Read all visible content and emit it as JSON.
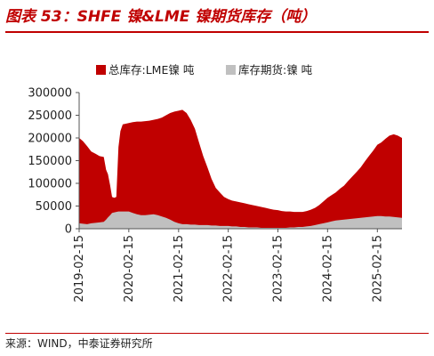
{
  "figure": {
    "title": "图表 53：SHFE 镍&LME 镍期货库存（吨）",
    "source": "来源：WIND，中泰证券研究所"
  },
  "colors": {
    "title": "#c00000",
    "total_series": "#c00000",
    "shfe_series": "#c0c0c0"
  },
  "chart_data": {
    "type": "area",
    "title": "",
    "xlabel": "",
    "ylabel": "",
    "ylim": [
      0,
      300000
    ],
    "y_ticks": [
      0,
      50000,
      100000,
      150000,
      200000,
      250000,
      300000
    ],
    "y_tick_labels": [
      "0",
      "50000",
      "100000",
      "150000",
      "200000",
      "250000",
      "300000"
    ],
    "x_ticks": [
      "2019-02-15",
      "2020-02-15",
      "2021-02-15",
      "2022-02-15",
      "2023-02-15",
      "2024-02-15",
      "2025-02-15"
    ],
    "x_range": [
      "2019-02-15",
      "2025-08-15"
    ],
    "grid": false,
    "legend_position": "top",
    "x": [
      "2019-02-15",
      "2019-03-15",
      "2019-04-15",
      "2019-05-15",
      "2019-06-15",
      "2019-07-15",
      "2019-08-15",
      "2019-09-01",
      "2019-09-15",
      "2019-10-01",
      "2019-10-15",
      "2019-11-01",
      "2019-11-15",
      "2019-12-01",
      "2019-12-15",
      "2020-01-01",
      "2020-02-15",
      "2020-03-15",
      "2020-04-15",
      "2020-05-15",
      "2020-06-15",
      "2020-07-15",
      "2020-08-15",
      "2020-09-15",
      "2020-10-15",
      "2020-11-15",
      "2020-12-15",
      "2021-01-15",
      "2021-02-15",
      "2021-03-15",
      "2021-04-15",
      "2021-05-15",
      "2021-06-15",
      "2021-07-15",
      "2021-08-15",
      "2021-09-15",
      "2021-10-15",
      "2021-11-15",
      "2021-12-15",
      "2022-01-15",
      "2022-02-15",
      "2022-03-15",
      "2022-04-15",
      "2022-05-15",
      "2022-06-15",
      "2022-07-15",
      "2022-08-15",
      "2022-09-15",
      "2022-10-15",
      "2022-11-15",
      "2022-12-15",
      "2023-01-15",
      "2023-02-15",
      "2023-03-15",
      "2023-04-15",
      "2023-05-15",
      "2023-06-15",
      "2023-07-15",
      "2023-08-15",
      "2023-09-15",
      "2023-10-15",
      "2023-11-15",
      "2023-12-15",
      "2024-01-15",
      "2024-02-15",
      "2024-03-15",
      "2024-04-15",
      "2024-05-15",
      "2024-06-15",
      "2024-07-15",
      "2024-08-15",
      "2024-09-15",
      "2024-10-15",
      "2024-11-15",
      "2024-12-15",
      "2025-01-15",
      "2025-02-15",
      "2025-03-15",
      "2025-04-15",
      "2025-05-15",
      "2025-06-15",
      "2025-07-15",
      "2025-08-15"
    ],
    "series": [
      {
        "name": "总库存:LME镍 吨",
        "values": [
          200000,
          193000,
          182000,
          170000,
          165000,
          160000,
          158000,
          130000,
          120000,
          95000,
          70000,
          68000,
          70000,
          180000,
          215000,
          230000,
          233000,
          235000,
          236000,
          236000,
          237000,
          238000,
          240000,
          242000,
          245000,
          250000,
          255000,
          258000,
          260000,
          262000,
          255000,
          240000,
          220000,
          190000,
          160000,
          135000,
          110000,
          90000,
          80000,
          70000,
          65000,
          62000,
          60000,
          58000,
          56000,
          54000,
          52000,
          50000,
          48000,
          46000,
          44000,
          42000,
          41000,
          39000,
          38000,
          38000,
          37000,
          37000,
          37000,
          39000,
          42000,
          46000,
          52000,
          60000,
          68000,
          74000,
          80000,
          88000,
          95000,
          105000,
          115000,
          125000,
          135000,
          148000,
          160000,
          172000,
          185000,
          190000,
          198000,
          205000,
          208000,
          205000,
          200000
        ]
      },
      {
        "name": "库存期货:镍 吨",
        "values": [
          12000,
          11000,
          10000,
          12000,
          13000,
          14000,
          15000,
          20000,
          25000,
          30000,
          35000,
          36000,
          37000,
          38000,
          38000,
          38000,
          38000,
          35000,
          32000,
          30000,
          30000,
          31000,
          32000,
          30000,
          27000,
          24000,
          20000,
          15000,
          12000,
          10000,
          10000,
          9000,
          9000,
          8000,
          8000,
          8000,
          7000,
          7000,
          6000,
          6000,
          6000,
          5000,
          5000,
          4000,
          4000,
          3000,
          3000,
          3000,
          2000,
          2000,
          2000,
          2000,
          2000,
          2000,
          2000,
          3000,
          3000,
          4000,
          4000,
          5000,
          6000,
          8000,
          10000,
          12000,
          14000,
          16000,
          18000,
          19000,
          20000,
          21000,
          22000,
          23000,
          24000,
          25000,
          26000,
          27000,
          28000,
          28000,
          27000,
          27000,
          26000,
          25000,
          24000
        ]
      }
    ]
  }
}
